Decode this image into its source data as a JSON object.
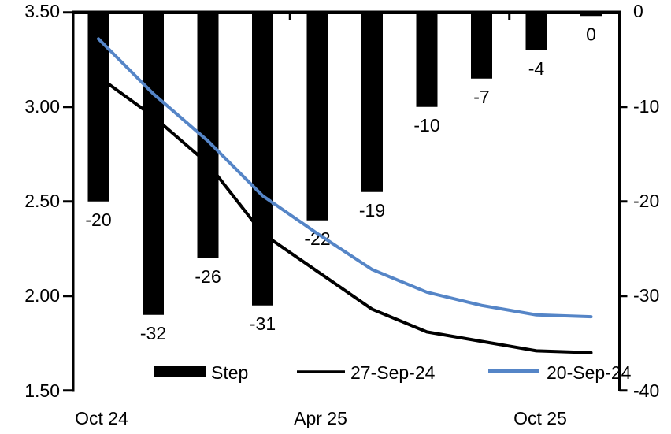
{
  "chart_data": {
    "type": "bar",
    "subtype": "combo-bar-line",
    "grid": false,
    "n_categories": 10,
    "x_axis": {
      "labels": [
        {
          "text": "Oct 24",
          "category_index": 0
        },
        {
          "text": "Apr 25",
          "category_index": 4
        },
        {
          "text": "Oct 25",
          "category_index": 8
        }
      ]
    },
    "left_axis": {
      "min": 1.5,
      "max": 3.5,
      "tick_labels": [
        "3.50",
        "3.00",
        "2.50",
        "2.00",
        "1.50"
      ]
    },
    "right_axis": {
      "min": -40,
      "max": 0,
      "tick_labels": [
        "0",
        "-10",
        "-20",
        "-30",
        "-40"
      ]
    },
    "bar_series": {
      "name": "Step",
      "axis": "right",
      "color": "#000000",
      "values": [
        -20,
        -32,
        -26,
        -31,
        -22,
        -19,
        -10,
        -7,
        -4,
        0
      ],
      "data_labels": [
        "-20",
        "-32",
        "-26",
        "-31",
        "-22",
        "-19",
        "-10",
        "-7",
        "-4",
        "0"
      ]
    },
    "line_series": [
      {
        "name": "27-Sep-24",
        "axis": "left",
        "color": "#000000",
        "values": [
          3.16,
          2.95,
          2.7,
          2.33,
          2.13,
          1.93,
          1.81,
          1.76,
          1.71,
          1.7
        ]
      },
      {
        "name": "20-Sep-24",
        "axis": "left",
        "color": "#5585C7",
        "values": [
          3.36,
          3.07,
          2.82,
          2.53,
          2.33,
          2.14,
          2.02,
          1.95,
          1.9,
          1.89
        ]
      }
    ],
    "legend": {
      "position": "bottom-inside",
      "items": [
        "Step",
        "27-Sep-24",
        "20-Sep-24"
      ]
    }
  }
}
